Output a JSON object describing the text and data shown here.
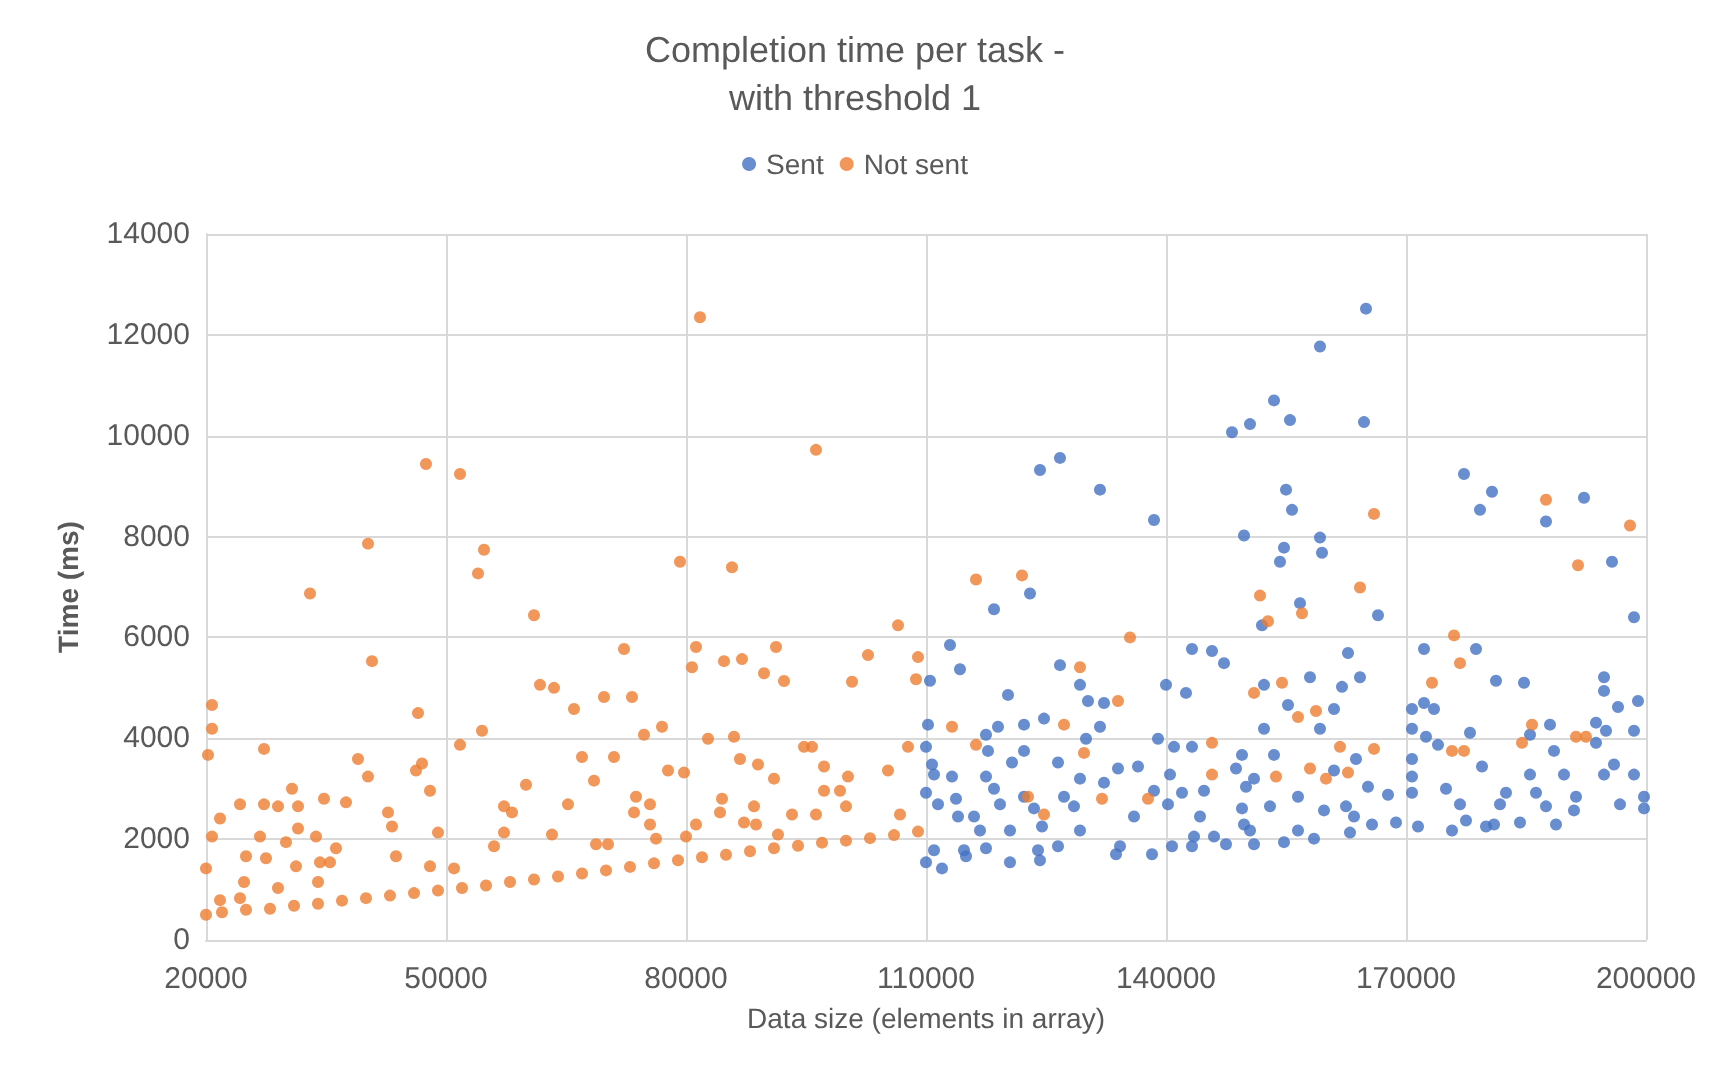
{
  "chart_data": {
    "type": "scatter",
    "title": "Completion time per task -\nwith threshold 1",
    "xlabel": "Data size (elements in array)",
    "ylabel": "Time (ms)",
    "xlim": [
      20000,
      200000
    ],
    "xticks": [
      20000,
      50000,
      80000,
      110000,
      140000,
      170000,
      200000
    ],
    "ylim": [
      0,
      14000
    ],
    "yticks": [
      0,
      2000,
      4000,
      6000,
      8000,
      10000,
      12000,
      14000
    ],
    "grid": true,
    "legend": "top",
    "marker": "circle",
    "series": [
      {
        "name": "Sent",
        "color": "#4472c4",
        "x": [
          165000,
          159250,
          153500,
          155500,
          150500,
          148250,
          164750,
          126750,
          124250,
          131750,
          177250,
          180750,
          179250,
          192250,
          187500,
          138500,
          155000,
          155750,
          149750,
          159250,
          159500,
          154750,
          154250,
          195750,
          123000,
          118500,
          156750,
          166500,
          198500,
          152000,
          113000,
          143250,
          145750,
          147250,
          162750,
          172250,
          178750,
          114250,
          126750,
          110500,
          129250,
          140000,
          142500,
          152250,
          158000,
          162000,
          164250,
          181250,
          184750,
          194750,
          194750,
          120250,
          130250,
          132250,
          155250,
          161000,
          170750,
          172250,
          173500,
          196500,
          199000,
          110250,
          117500,
          119000,
          122250,
          124750,
          131750,
          152250,
          159250,
          170750,
          178000,
          193750,
          198500,
          185500,
          188000,
          195000,
          110000,
          117750,
          122250,
          130000,
          139000,
          141000,
          143250,
          149500,
          153500,
          172500,
          174000,
          188500,
          193750,
          110750,
          120750,
          126500,
          134000,
          136500,
          148750,
          163750,
          170750,
          179500,
          196000,
          198500,
          111000,
          113250,
          117500,
          129250,
          140500,
          151000,
          161000,
          170750,
          185500,
          189750,
          194750,
          110000,
          113750,
          118500,
          122250,
          127250,
          132250,
          138500,
          142000,
          144750,
          150000,
          156500,
          165250,
          167750,
          170750,
          175000,
          182500,
          186250,
          191250,
          199750,
          111500,
          119250,
          128500,
          140250,
          149500,
          153000,
          162500,
          176750,
          181750,
          187500,
          196750,
          114000,
          116000,
          123500,
          136000,
          144250,
          149750,
          159750,
          163500,
          165750,
          171500,
          177500,
          181000,
          188750,
          199750,
          116750,
          120500,
          124500,
          129250,
          143500,
          146000,
          150500,
          156500,
          163000,
          168750,
          175750,
          180000,
          184250,
          191000,
          114750,
          117500,
          124000,
          126500,
          134250,
          138250,
          140750,
          143250,
          147500,
          151000,
          154750,
          158500,
          110000,
          112000,
          115000,
          120500,
          124250,
          133750,
          111000
        ],
        "values": [
          12520,
          11770,
          10700,
          10310,
          10230,
          10070,
          10270,
          9560,
          9320,
          8930,
          9240,
          8890,
          8530,
          8770,
          8300,
          8330,
          8930,
          8530,
          8020,
          7980,
          7680,
          7780,
          7500,
          7500,
          6870,
          6560,
          6680,
          6440,
          6400,
          6240,
          5850,
          5770,
          5730,
          5490,
          5690,
          5770,
          5770,
          5370,
          5450,
          5140,
          5060,
          5060,
          4900,
          5060,
          5210,
          5020,
          5210,
          5140,
          5100,
          5210,
          4940,
          4860,
          4740,
          4700,
          4660,
          4580,
          4580,
          4700,
          4580,
          4620,
          4740,
          4270,
          4070,
          4230,
          4270,
          4390,
          4230,
          4190,
          4190,
          4190,
          4110,
          4310,
          4150,
          4070,
          4270,
          4150,
          3830,
          3750,
          3750,
          3990,
          3990,
          3830,
          3830,
          3670,
          3670,
          4030,
          3870,
          3750,
          3910,
          3480,
          3520,
          3520,
          3400,
          3440,
          3400,
          3590,
          3590,
          3440,
          3480,
          3280,
          3280,
          3240,
          3240,
          3200,
          3280,
          3200,
          3360,
          3240,
          3280,
          3280,
          3280,
          2920,
          2800,
          3000,
          2840,
          2840,
          3120,
          2960,
          2920,
          2960,
          3040,
          2840,
          3040,
          2880,
          2920,
          3000,
          2920,
          2920,
          2840,
          2840,
          2690,
          2690,
          2650,
          2690,
          2610,
          2650,
          2650,
          2690,
          2690,
          2650,
          2690,
          2450,
          2450,
          2610,
          2450,
          2450,
          2290,
          2570,
          2450,
          2290,
          2250,
          2370,
          2290,
          2290,
          2610,
          2170,
          2170,
          2250,
          2170,
          2050,
          2050,
          2170,
          2170,
          2130,
          2330,
          2170,
          2250,
          2330,
          2570,
          1780,
          1820,
          1780,
          1860,
          1860,
          1700,
          1860,
          1860,
          1900,
          1900,
          1940,
          2010,
          1540,
          1420,
          1660,
          1540,
          1580,
          1700,
          1780
        ]
      },
      {
        "name": "Not sent",
        "color": "#ed7d31",
        "x": [
          20000,
          22000,
          25000,
          28000,
          31000,
          34000,
          37000,
          40000,
          43000,
          46000,
          49000,
          52000,
          55000,
          58000,
          61000,
          64000,
          67000,
          70000,
          73000,
          76000,
          79000,
          82000,
          85000,
          88000,
          91000,
          94000,
          97000,
          100000,
          103000,
          106000,
          109000,
          81750,
          96250,
          47500,
          51750,
          40250,
          54750,
          54000,
          33000,
          79250,
          85750,
          61000,
          106500,
          40750,
          72250,
          81250,
          80750,
          84750,
          87000,
          89750,
          91250,
          92250,
          102750,
          100750,
          109000,
          108750,
          61750,
          63500,
          69750,
          73250,
          66000,
          46500,
          20750,
          20750,
          20250,
          27250,
          39000,
          40250,
          46250,
          47000,
          48000,
          51750,
          54500,
          60000,
          67000,
          68500,
          71000,
          74750,
          77000,
          77750,
          79750,
          82750,
          86000,
          86750,
          89000,
          91000,
          94750,
          95750,
          97250,
          100250,
          105250,
          107750,
          24250,
          27250,
          21750,
          30750,
          29000,
          31500,
          34750,
          37500,
          42750,
          43250,
          33750,
          26750,
          20750,
          31500,
          30000,
          36250,
          25000,
          27500,
          31250,
          34250,
          35500,
          20000,
          24750,
          34000,
          29000,
          21750,
          24250,
          43750,
          48000,
          49000,
          51000,
          57250,
          58250,
          57250,
          56000,
          63250,
          65250,
          68750,
          70250,
          73500,
          73750,
          75500,
          75500,
          76250,
          81250,
          84250,
          84500,
          87250,
          88750,
          88500,
          91500,
          93250,
          96250,
          97250,
          99250,
          100000,
          106750,
          80000,
          166000,
          187500,
          198000,
          191500,
          116250,
          122000,
          164250,
          151750,
          152750,
          157000,
          135500,
          176000,
          176750,
          129250,
          173250,
          154500,
          134000,
          151000,
          158750,
          156500,
          113250,
          127250,
          185750,
          191250,
          192500,
          116250,
          129750,
          145750,
          161750,
          166000,
          175750,
          177250,
          184500,
          145750,
          153750,
          158000,
          160000,
          162750,
          122750,
          132000,
          137750,
          124750
        ],
        "values": [
          500,
          550,
          600,
          620,
          680,
          720,
          780,
          830,
          880,
          930,
          980,
          1030,
          1080,
          1150,
          1200,
          1260,
          1320,
          1380,
          1450,
          1520,
          1580,
          1640,
          1690,
          1760,
          1820,
          1870,
          1930,
          1970,
          2020,
          2080,
          2150,
          12350,
          9720,
          9440,
          9240,
          7860,
          7740,
          7270,
          6870,
          7500,
          7390,
          6440,
          6240,
          5530,
          5770,
          5810,
          5410,
          5530,
          5570,
          5290,
          5810,
          5135,
          5650,
          5120,
          5610,
          5170,
          5060,
          5000,
          4820,
          4820,
          4580,
          4500,
          4660,
          4190,
          3670,
          3790,
          3590,
          3240,
          3360,
          3500,
          2960,
          3870,
          4150,
          3080,
          3630,
          3160,
          3630,
          4070,
          4230,
          3360,
          3320,
          3990,
          4030,
          3590,
          3480,
          3200,
          3830,
          3830,
          3440,
          3240,
          3360,
          3830,
          2690,
          2690,
          2410,
          3000,
          2650,
          2650,
          2800,
          2730,
          2530,
          2250,
          2050,
          2050,
          2050,
          2210,
          1940,
          1820,
          1660,
          1620,
          1460,
          1540,
          1540,
          1420,
          1150,
          1150,
          1030,
          790,
          830,
          1660,
          1460,
          2130,
          1420,
          2650,
          2530,
          2130,
          1860,
          2090,
          2690,
          1900,
          1900,
          2530,
          2840,
          2690,
          2290,
          2010,
          2290,
          2530,
          2800,
          2330,
          2290,
          2650,
          2090,
          2490,
          2490,
          2960,
          2960,
          2650,
          2490,
          2050,
          8450,
          8730,
          8220,
          7430,
          7150,
          7230,
          6990,
          6830,
          6320,
          6480,
          6000,
          6040,
          5490,
          5410,
          5100,
          5100,
          4740,
          4900,
          4540,
          4420,
          4230,
          4270,
          4270,
          4030,
          4030,
          3870,
          3710,
          3910,
          3830,
          3790,
          3750,
          3750,
          3910,
          3280,
          3240,
          3400,
          3200,
          3320,
          2840,
          2800,
          2800,
          2490
        ]
      }
    ]
  }
}
